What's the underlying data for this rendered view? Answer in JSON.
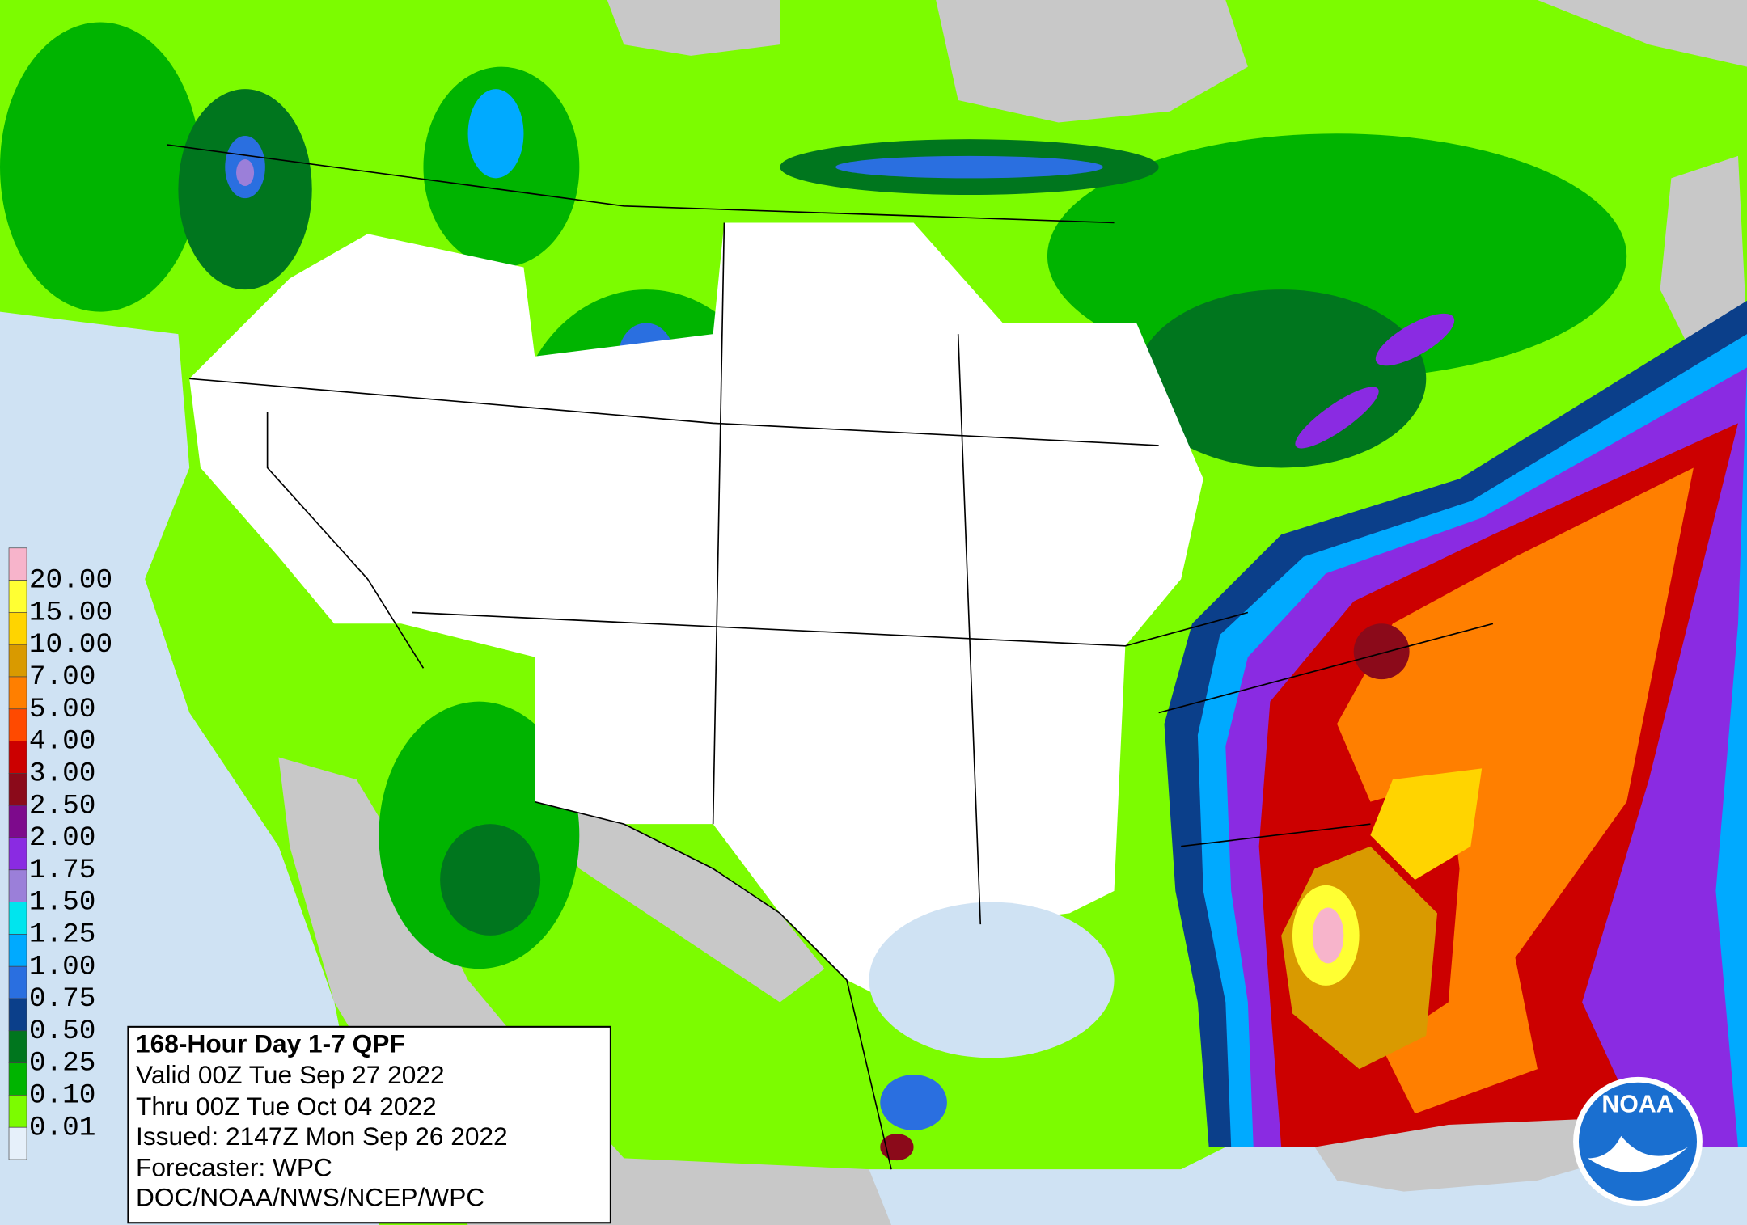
{
  "legend": {
    "labels": [
      "20.00",
      "15.00",
      "10.00",
      "7.00",
      "5.00",
      "4.00",
      "3.00",
      "2.50",
      "2.00",
      "1.75",
      "1.50",
      "1.25",
      "1.00",
      "0.75",
      "0.50",
      "0.25",
      "0.10",
      "0.01"
    ],
    "colors": [
      "#f7b4cb",
      "#ffff33",
      "#ffd400",
      "#d99a00",
      "#ff7f00",
      "#ff4a00",
      "#cc0000",
      "#8b0a1a",
      "#7d0a8c",
      "#8a2be2",
      "#9b7fd9",
      "#00e5ee",
      "#00aaff",
      "#2a6fe0",
      "#0b3f8a",
      "#00761e",
      "#00b400",
      "#7cfc00",
      "#e6f0fa"
    ]
  },
  "info": {
    "title": "168-Hour Day 1-7 QPF",
    "lines": [
      "Valid 00Z Tue Sep 27 2022",
      "Thru 00Z Tue Oct 04 2022",
      "Issued: 2147Z Mon Sep 26 2022",
      "Forecaster: WPC",
      "DOC/NOAA/NWS/NCEP/WPC"
    ]
  },
  "logo": {
    "text": "NOAA"
  }
}
